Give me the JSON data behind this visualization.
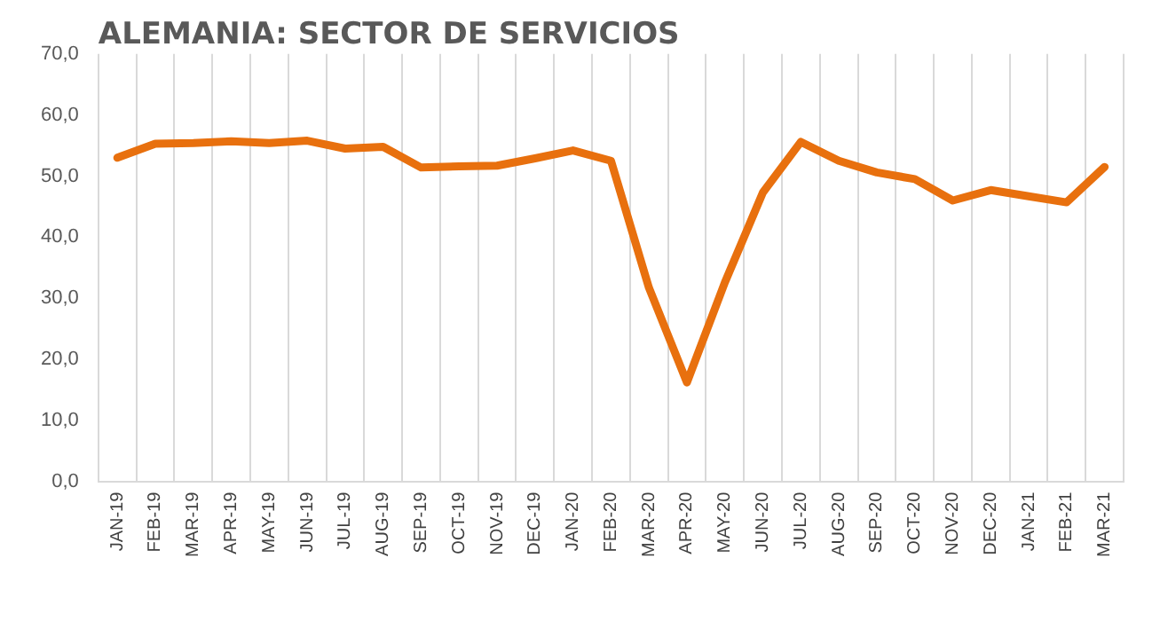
{
  "chart_data": {
    "type": "line",
    "title": "ALEMANIA: SECTOR DE SERVICIOS",
    "categories": [
      "JAN-19",
      "FEB-19",
      "MAR-19",
      "APR-19",
      "MAY-19",
      "JUN-19",
      "JUL-19",
      "AUG-19",
      "SEP-19",
      "OCT-19",
      "NOV-19",
      "DEC-19",
      "JAN-20",
      "FEB-20",
      "MAR-20",
      "APR-20",
      "MAY-20",
      "JUN-20",
      "JUL-20",
      "AUG-20",
      "SEP-20",
      "OCT-20",
      "NOV-20",
      "DEC-20",
      "JAN-21",
      "FEB-21",
      "MAR-21"
    ],
    "series": [
      {
        "color": "#e8700e",
        "values": [
          53.0,
          55.3,
          55.4,
          55.7,
          55.4,
          55.8,
          54.5,
          54.8,
          51.4,
          51.6,
          51.7,
          52.9,
          54.2,
          52.5,
          31.7,
          16.2,
          32.6,
          47.3,
          55.6,
          52.5,
          50.6,
          49.5,
          46.0,
          47.7,
          46.7,
          45.7,
          51.5
        ]
      }
    ],
    "ylim": [
      0,
      70
    ],
    "yticks": [
      {
        "value": 0,
        "label": "0,0"
      },
      {
        "value": 10,
        "label": "10,0"
      },
      {
        "value": 20,
        "label": "20,0"
      },
      {
        "value": 30,
        "label": "30,0"
      },
      {
        "value": 40,
        "label": "40,0"
      },
      {
        "value": 50,
        "label": "50,0"
      },
      {
        "value": 60,
        "label": "60,0"
      },
      {
        "value": 70,
        "label": "70,0"
      }
    ],
    "grid": "x",
    "legend": false,
    "marker": "none",
    "line_style": "solid"
  }
}
